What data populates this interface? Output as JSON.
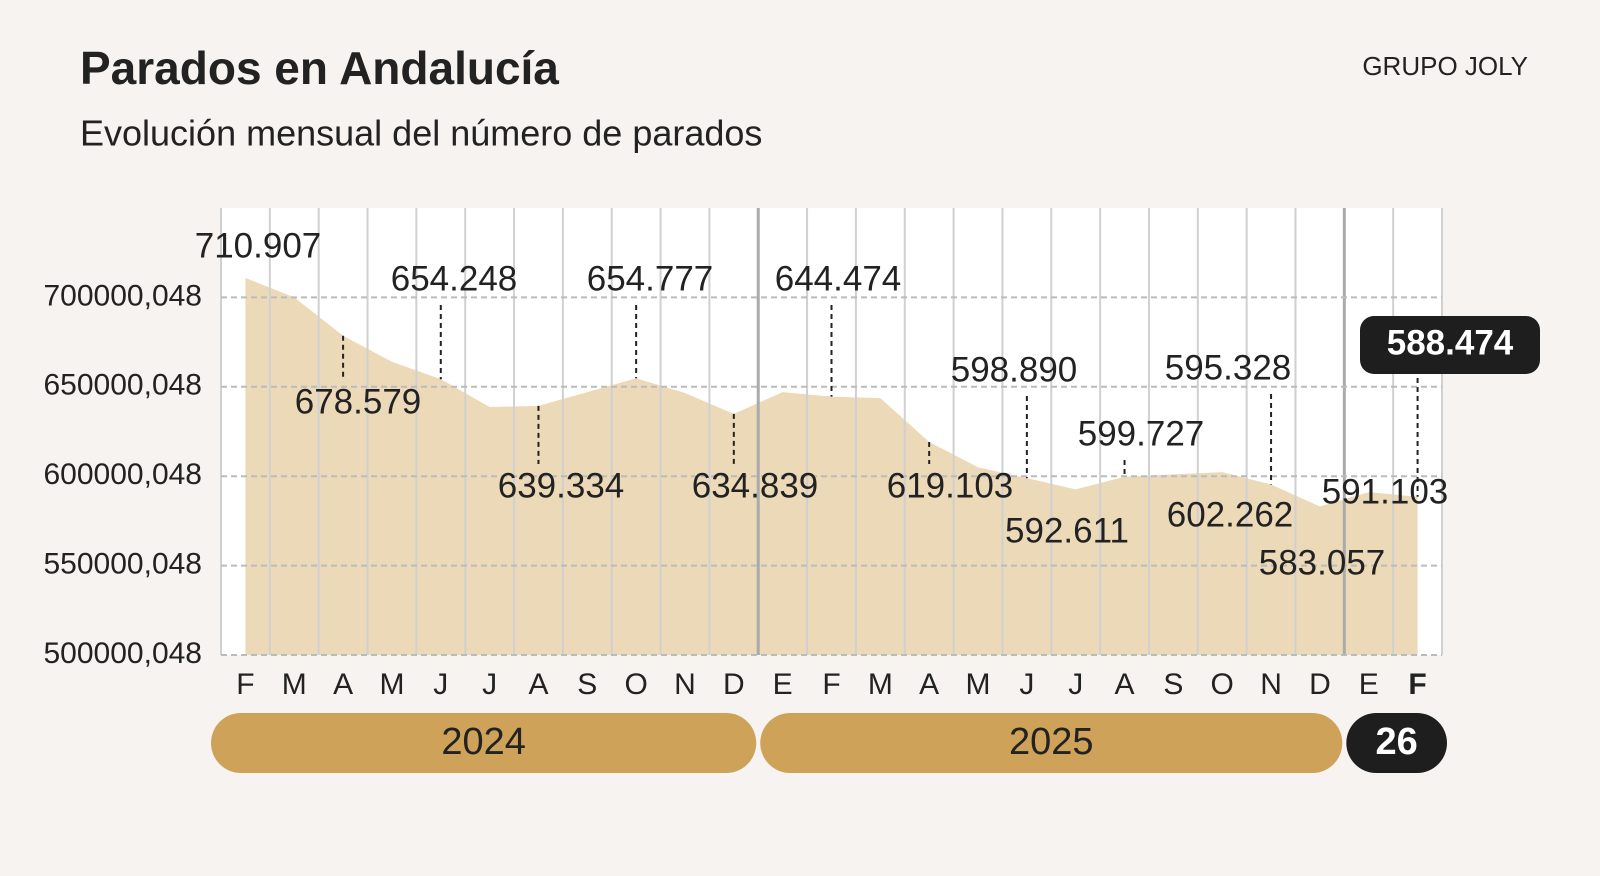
{
  "chart_data": {
    "type": "area",
    "title": "Parados en Andalucía",
    "subtitle": "Evolución mensual del número de parados",
    "source": "GRUPO JOLY",
    "categories": [
      "F",
      "M",
      "A",
      "M",
      "J",
      "J",
      "A",
      "S",
      "O",
      "N",
      "D",
      "E",
      "F",
      "M",
      "A",
      "M",
      "J",
      "J",
      "A",
      "S",
      "O",
      "N",
      "D",
      "E",
      "F"
    ],
    "values": [
      710907,
      700000,
      678579,
      664000,
      654248,
      638700,
      639334,
      647000,
      654777,
      646500,
      634839,
      647000,
      644474,
      643700,
      619103,
      605000,
      598890,
      592611,
      599727,
      601000,
      602262,
      595328,
      583057,
      591103,
      588474
    ],
    "value_labels": [
      "710.907",
      null,
      "678.579",
      null,
      "654.248",
      null,
      "639.334",
      null,
      "654.777",
      null,
      "634.839",
      null,
      "644.474",
      null,
      "619.103",
      null,
      "598.890",
      "592.611",
      "599.727",
      null,
      "602.262",
      "595.328",
      "583.057",
      "591.103",
      "588.474"
    ],
    "color": "#ecd9b8",
    "ylim": [
      500000.048,
      750000
    ],
    "yticks": [
      {
        "value": 500000.048,
        "label": "500000,048"
      },
      {
        "value": 550000.048,
        "label": "550000,048"
      },
      {
        "value": 600000.048,
        "label": "600000,048"
      },
      {
        "value": 650000.048,
        "label": "650000,048"
      },
      {
        "value": 700000.048,
        "label": "700000,048"
      }
    ],
    "grid": true,
    "groups": [
      {
        "label": "2024",
        "count": 11
      },
      {
        "label": "2025",
        "count": 12
      },
      {
        "label": "26",
        "count": 2
      }
    ]
  }
}
